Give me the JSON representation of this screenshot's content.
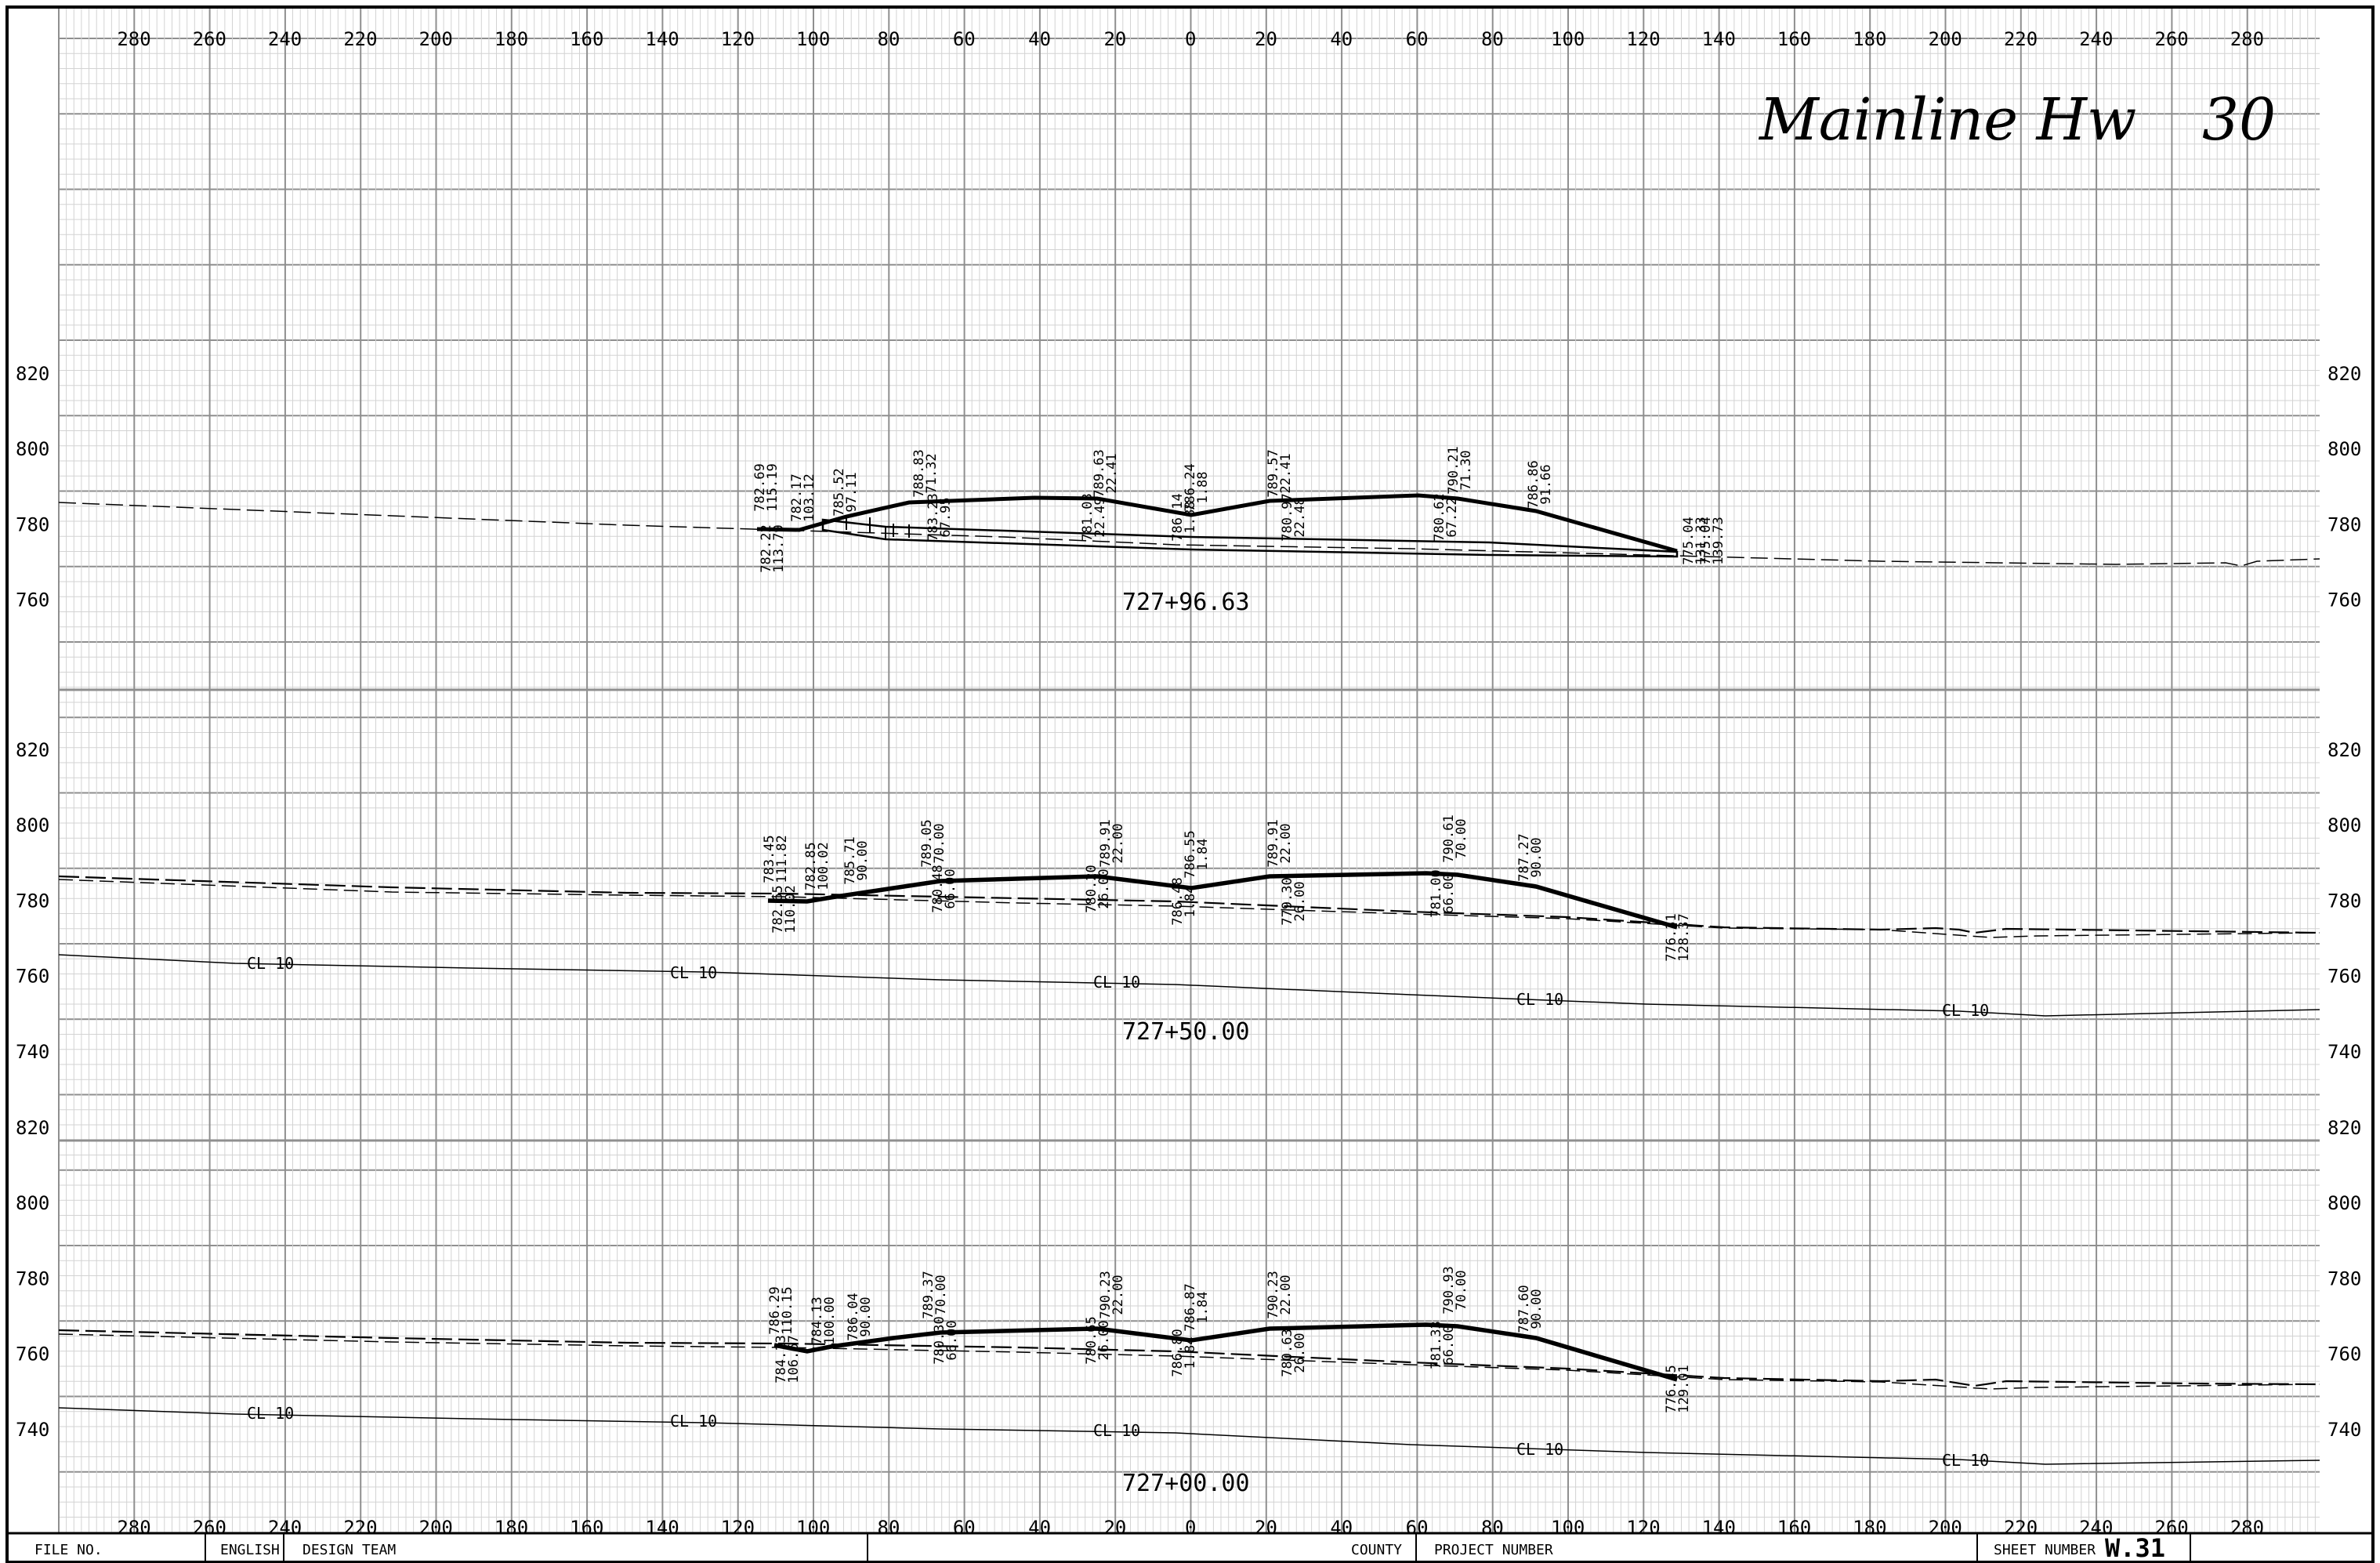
{
  "title": {
    "name": "Mainline Hw",
    "number": "30"
  },
  "offset_ticks": [
    "280",
    "260",
    "240",
    "220",
    "200",
    "180",
    "160",
    "140",
    "120",
    "100",
    "80",
    "60",
    "40",
    "20",
    "0",
    "20",
    "40",
    "60",
    "80",
    "100",
    "120",
    "140",
    "160",
    "180",
    "200",
    "220",
    "240",
    "260",
    "280"
  ],
  "sections": [
    {
      "station": "727+96.63",
      "elev_ticks": [
        "820",
        "800",
        "780",
        "760"
      ],
      "labels": [
        {
          "a": "782.69",
          "b": "115.19"
        },
        {
          "a": "782.22",
          "b": "113.79"
        },
        {
          "a": "782.17",
          "b": "103.12"
        },
        {
          "a": "785.52",
          "b": "97.11"
        },
        {
          "a": "788.83",
          "b": "71.32"
        },
        {
          "a": "783.23",
          "b": "67.95"
        },
        {
          "a": "789.63",
          "b": "22.41"
        },
        {
          "a": "781.03",
          "b": "22.49"
        },
        {
          "a": "786.24",
          "b": "1.88"
        },
        {
          "a": "786.14",
          "b": "1.88"
        },
        {
          "a": "789.57",
          "b": "22.41"
        },
        {
          "a": "780.97",
          "b": "22.48"
        },
        {
          "a": "790.21",
          "b": "71.30"
        },
        {
          "a": "780.62",
          "b": "67.22"
        },
        {
          "a": "786.86",
          "b": "91.66"
        },
        {
          "a": "775.04",
          "b": "131.33"
        },
        {
          "a": "775.04",
          "b": "139.73"
        }
      ]
    },
    {
      "station": "727+50.00",
      "elev_ticks": [
        "820",
        "800",
        "780",
        "760",
        "740"
      ],
      "labels": [
        {
          "a": "783.45",
          "b": "111.82"
        },
        {
          "a": "782.65",
          "b": "110.02"
        },
        {
          "a": "782.85",
          "b": "100.02"
        },
        {
          "a": "785.71",
          "b": "90.00"
        },
        {
          "a": "789.05",
          "b": "70.00"
        },
        {
          "a": "780.48",
          "b": "66.00"
        },
        {
          "a": "789.91",
          "b": "22.00"
        },
        {
          "a": "780.20",
          "b": "26.00"
        },
        {
          "a": "786.55",
          "b": "1.84"
        },
        {
          "a": "786.48",
          "b": "1.84"
        },
        {
          "a": "789.91",
          "b": "22.00"
        },
        {
          "a": "779.30",
          "b": "26.00"
        },
        {
          "a": "790.61",
          "b": "70.00"
        },
        {
          "a": "781.00",
          "b": "66.00"
        },
        {
          "a": "787.27",
          "b": "90.00"
        },
        {
          "a": "776.31",
          "b": "128.37"
        }
      ],
      "cl_label": "CL 10"
    },
    {
      "station": "727+00.00",
      "elev_ticks": [
        "820",
        "800",
        "780",
        "760",
        "740"
      ],
      "labels": [
        {
          "a": "786.29",
          "b": "110.15"
        },
        {
          "a": "784.13",
          "b": "106.67"
        },
        {
          "a": "784.13",
          "b": "100.00"
        },
        {
          "a": "786.04",
          "b": "90.00"
        },
        {
          "a": "789.37",
          "b": "70.00"
        },
        {
          "a": "780.30",
          "b": "66.00"
        },
        {
          "a": "790.23",
          "b": "22.00"
        },
        {
          "a": "780.65",
          "b": "26.00"
        },
        {
          "a": "786.87",
          "b": "1.84"
        },
        {
          "a": "786.80",
          "b": "1.84"
        },
        {
          "a": "790.23",
          "b": "22.00"
        },
        {
          "a": "780.63",
          "b": "26.00"
        },
        {
          "a": "790.93",
          "b": "70.00"
        },
        {
          "a": "781.33",
          "b": "66.00"
        },
        {
          "a": "787.60",
          "b": "90.00"
        },
        {
          "a": "776.45",
          "b": "129.01"
        }
      ],
      "cl_label": "CL 10"
    }
  ],
  "title_block": {
    "file_no": "FILE NO.",
    "units": "ENGLISH",
    "design_team": "DESIGN TEAM",
    "county": "COUNTY",
    "project_number": "PROJECT NUMBER",
    "sheet_number_label": "SHEET NUMBER",
    "sheet_number": "W.31"
  }
}
